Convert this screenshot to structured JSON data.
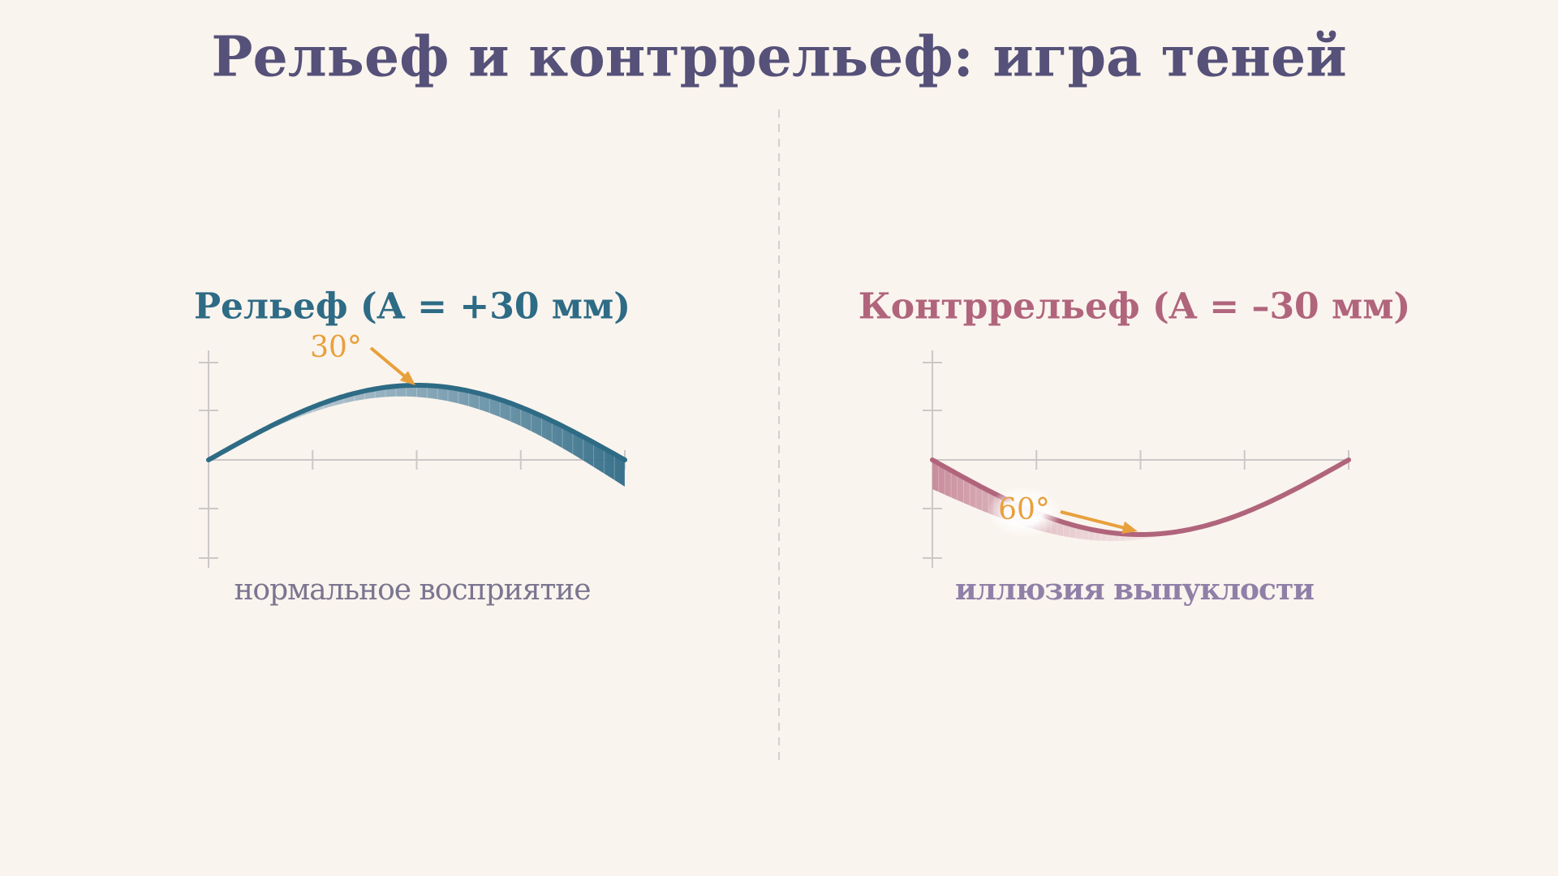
{
  "header": {
    "title": "Рельеф и контррельеф: игра теней"
  },
  "panels": [
    {
      "title": "Рельеф (A = +30 мм)",
      "angle_label": "30°",
      "caption": "нормальное восприятие"
    },
    {
      "title": "Контррельеф (A = –30 мм)",
      "angle_label": "60°",
      "caption": "иллюзия выпуклости"
    }
  ]
}
